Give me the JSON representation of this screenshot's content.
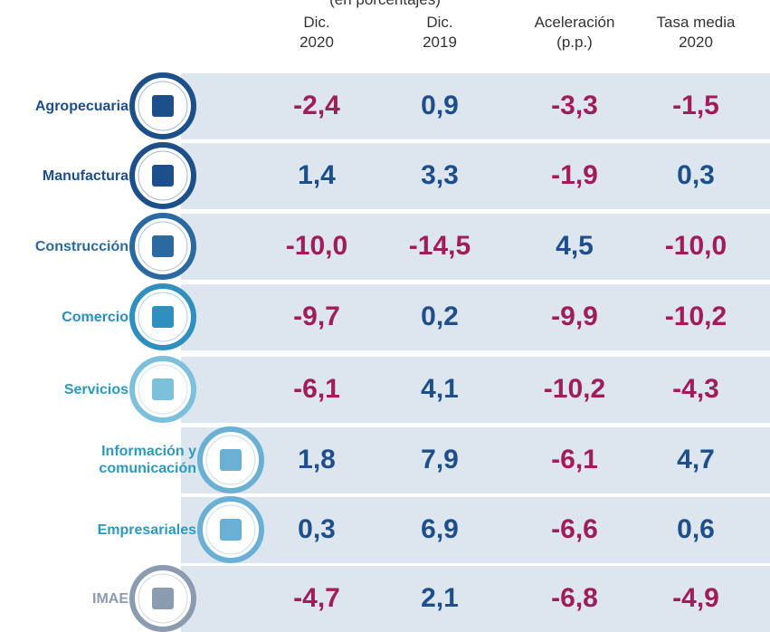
{
  "subtitle": "(en porcentajes)",
  "headers": [
    [
      "Dic.",
      "2020"
    ],
    [
      "Dic.",
      "2019"
    ],
    [
      "Aceleración",
      "(p.p.)"
    ],
    [
      "Tasa media",
      "2020"
    ]
  ],
  "rows": [
    {
      "label": "Agropecuaria",
      "values": [
        "-2,4",
        "0,9",
        "-3,3",
        "-1,5"
      ]
    },
    {
      "label": "Manufactura",
      "values": [
        "1,4",
        "3,3",
        "-1,9",
        "0,3"
      ]
    },
    {
      "label": "Construcción",
      "values": [
        "-10,0",
        "-14,5",
        "4,5",
        "-10,0"
      ]
    },
    {
      "label": "Comercio",
      "values": [
        "-9,7",
        "0,2",
        "-9,9",
        "-10,2"
      ]
    },
    {
      "label": "Servicios",
      "values": [
        "-6,1",
        "4,1",
        "-10,2",
        "-4,3"
      ]
    },
    {
      "label": [
        "Información y",
        "comunicación"
      ],
      "values": [
        "1,8",
        "7,9",
        "-6,1",
        "4,7"
      ]
    },
    {
      "label": "Empresariales",
      "values": [
        "0,3",
        "6,9",
        "-6,6",
        "0,6"
      ]
    },
    {
      "label": "IMAE",
      "values": [
        "-4,7",
        "2,1",
        "-6,8",
        "-4,9"
      ]
    }
  ]
}
